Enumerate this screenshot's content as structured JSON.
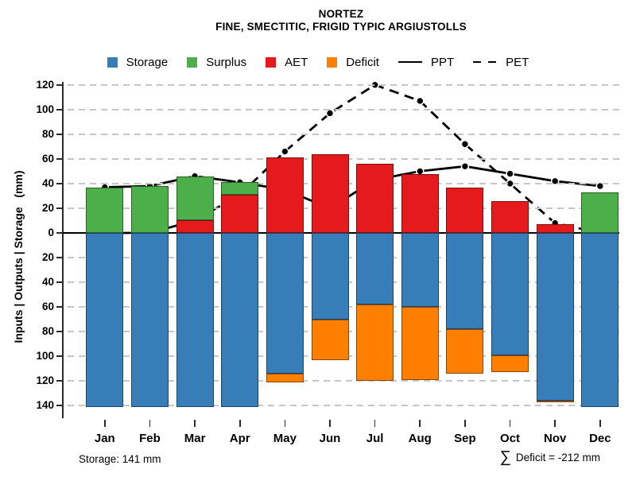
{
  "title": {
    "line1": "NORTEZ",
    "line2": "FINE, SMECTITIC, FRIGID TYPIC ARGIUSTOLLS"
  },
  "y_axis_label": "Inputs | Outputs | Storage   (mm)",
  "footer": {
    "storage": "Storage: 141 mm",
    "sigma": "∑",
    "deficit": "Deficit = -212 mm"
  },
  "legend": [
    {
      "label": "Storage",
      "type": "swatch",
      "color": "#377EB8"
    },
    {
      "label": "Surplus",
      "type": "swatch",
      "color": "#4DAF4A"
    },
    {
      "label": "AET",
      "type": "swatch",
      "color": "#E41A1C"
    },
    {
      "label": "Deficit",
      "type": "swatch",
      "color": "#FF7F00"
    },
    {
      "label": "PPT",
      "type": "line-solid",
      "color": "#000000"
    },
    {
      "label": "PET",
      "type": "line-dashed",
      "color": "#000000"
    }
  ],
  "chart_data": {
    "type": "bar-line-combo",
    "subtype": "monthly-water-balance",
    "title": "NORTEZ",
    "subtitle": "FINE, SMECTITIC, FRIGID TYPIC ARGIUSTOLLS",
    "xlabel": "",
    "ylabel": "Inputs | Outputs | Storage   (mm)",
    "grid": true,
    "y_ticks_upper": [
      0,
      20,
      40,
      60,
      80,
      100,
      120
    ],
    "y_ticks_lower": [
      20,
      40,
      60,
      80,
      100,
      120,
      140
    ],
    "ylim_upper": [
      0,
      120
    ],
    "ylim_lower": [
      0,
      140
    ],
    "categories": [
      "Jan",
      "Feb",
      "Mar",
      "Apr",
      "May",
      "Jun",
      "Jul",
      "Aug",
      "Sep",
      "Oct",
      "Nov",
      "Dec"
    ],
    "colors": {
      "storage": "#377EB8",
      "surplus": "#4DAF4A",
      "aet": "#E41A1C",
      "deficit": "#FF7F00",
      "ppt_line": "#000000",
      "pet_line": "#000000",
      "gridline": "#c6c6c6"
    },
    "series": [
      {
        "name": "AET",
        "kind": "bar",
        "direction": "up",
        "stack_order": 1,
        "color": "#E41A1C",
        "values": [
          0,
          0,
          10,
          31,
          61,
          64,
          56,
          48,
          37,
          26,
          7,
          0
        ]
      },
      {
        "name": "Surplus",
        "kind": "bar",
        "direction": "up",
        "stack_order": 2,
        "color": "#4DAF4A",
        "values": [
          37,
          38,
          36,
          10,
          0,
          0,
          0,
          0,
          0,
          0,
          0,
          33
        ]
      },
      {
        "name": "Storage",
        "kind": "bar",
        "direction": "down",
        "stack_order": 1,
        "color": "#377EB8",
        "values": [
          141,
          141,
          141,
          141,
          114,
          70,
          58,
          60,
          78,
          99,
          136,
          141
        ]
      },
      {
        "name": "Deficit",
        "kind": "bar",
        "direction": "down",
        "stack_order": 2,
        "color": "#FF7F00",
        "values": [
          0,
          0,
          0,
          0,
          7,
          33,
          62,
          59,
          36,
          14,
          1,
          0
        ]
      },
      {
        "name": "PPT",
        "kind": "line",
        "style": "solid",
        "color": "#000000",
        "values": [
          37,
          38,
          46,
          41,
          35,
          20,
          43,
          50,
          54,
          48,
          42,
          38
        ]
      },
      {
        "name": "PET",
        "kind": "line",
        "style": "dashed",
        "color": "#000000",
        "values": [
          0,
          0,
          10,
          31,
          66,
          97,
          120,
          107,
          72,
          40,
          8,
          0
        ]
      }
    ],
    "annotations": {
      "storage_max": "Storage: 141 mm",
      "deficit_sum": "∑ Deficit = -212 mm"
    },
    "legend_position": "top"
  }
}
